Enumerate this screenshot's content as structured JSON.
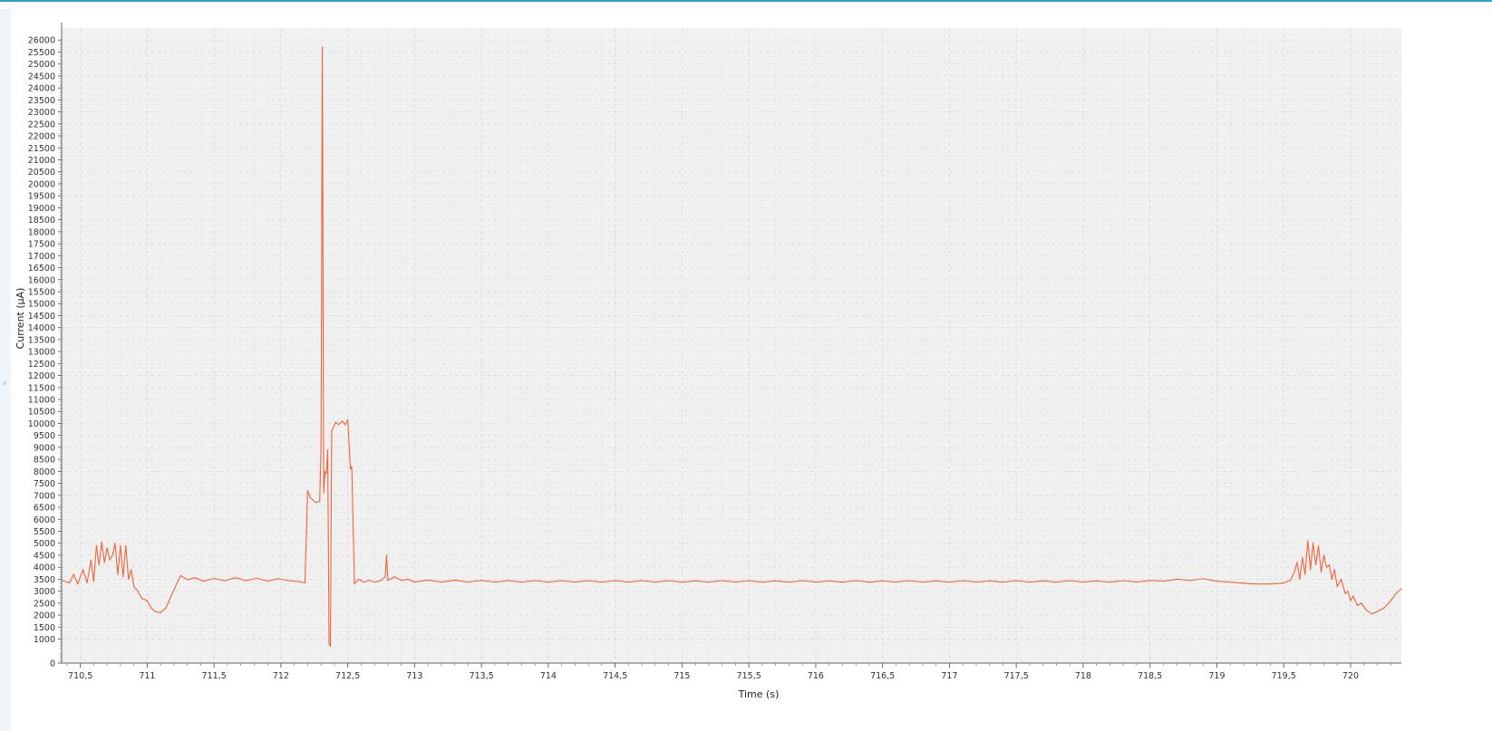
{
  "colors": {
    "accent_border": "#2aa7bd",
    "plot_background": "#f2f2f2",
    "grid": "#d9d9d9",
    "series": "#f0643c",
    "axis": "#666666"
  },
  "chart_data": {
    "type": "line",
    "xlabel": "Time (s)",
    "ylabel": "Current (µA)",
    "xlim": [
      710.36,
      720.38
    ],
    "ylim": [
      0,
      26500
    ],
    "grid": true,
    "x_ticks": [
      {
        "value": 710.5,
        "label": "710,5"
      },
      {
        "value": 711,
        "label": "711"
      },
      {
        "value": 711.5,
        "label": "711,5"
      },
      {
        "value": 712,
        "label": "712"
      },
      {
        "value": 712.5,
        "label": "712,5"
      },
      {
        "value": 713,
        "label": "713"
      },
      {
        "value": 713.5,
        "label": "713,5"
      },
      {
        "value": 714,
        "label": "714"
      },
      {
        "value": 714.5,
        "label": "714,5"
      },
      {
        "value": 715,
        "label": "715"
      },
      {
        "value": 715.5,
        "label": "715,5"
      },
      {
        "value": 716,
        "label": "716"
      },
      {
        "value": 716.5,
        "label": "716,5"
      },
      {
        "value": 717,
        "label": "717"
      },
      {
        "value": 717.5,
        "label": "717,5"
      },
      {
        "value": 718,
        "label": "718"
      },
      {
        "value": 718.5,
        "label": "718,5"
      },
      {
        "value": 719,
        "label": "719"
      },
      {
        "value": 719.5,
        "label": "719,5"
      },
      {
        "value": 720,
        "label": "720"
      }
    ],
    "y_ticks": [
      {
        "value": 0,
        "label": "0"
      },
      {
        "value": 1000,
        "label": "1000"
      },
      {
        "value": 1500,
        "label": "1500"
      },
      {
        "value": 2000,
        "label": "2000"
      },
      {
        "value": 2500,
        "label": "2500"
      },
      {
        "value": 3000,
        "label": "3000"
      },
      {
        "value": 3500,
        "label": "3500"
      },
      {
        "value": 4000,
        "label": "4000"
      },
      {
        "value": 4500,
        "label": "4500"
      },
      {
        "value": 5000,
        "label": "5000"
      },
      {
        "value": 5500,
        "label": "5500"
      },
      {
        "value": 6000,
        "label": "6000"
      },
      {
        "value": 6500,
        "label": "6500"
      },
      {
        "value": 7000,
        "label": "7000"
      },
      {
        "value": 7500,
        "label": "7500"
      },
      {
        "value": 8000,
        "label": "8000"
      },
      {
        "value": 8500,
        "label": "8500"
      },
      {
        "value": 9000,
        "label": "9000"
      },
      {
        "value": 9500,
        "label": "9500"
      },
      {
        "value": 10000,
        "label": "10000"
      },
      {
        "value": 10500,
        "label": "10500"
      },
      {
        "value": 11000,
        "label": "11000"
      },
      {
        "value": 11500,
        "label": "11500"
      },
      {
        "value": 12000,
        "label": "12000"
      },
      {
        "value": 12500,
        "label": "12500"
      },
      {
        "value": 13000,
        "label": "13000"
      },
      {
        "value": 13500,
        "label": "13500"
      },
      {
        "value": 14000,
        "label": "14000"
      },
      {
        "value": 14500,
        "label": "14500"
      },
      {
        "value": 15000,
        "label": "15000"
      },
      {
        "value": 15500,
        "label": "15500"
      },
      {
        "value": 16000,
        "label": "16000"
      },
      {
        "value": 16500,
        "label": "16500"
      },
      {
        "value": 17000,
        "label": "17000"
      },
      {
        "value": 17500,
        "label": "17500"
      },
      {
        "value": 18000,
        "label": "18000"
      },
      {
        "value": 18500,
        "label": "18500"
      },
      {
        "value": 19000,
        "label": "19000"
      },
      {
        "value": 19500,
        "label": "19500"
      },
      {
        "value": 20000,
        "label": "20000"
      },
      {
        "value": 20500,
        "label": "20500"
      },
      {
        "value": 21000,
        "label": "21000"
      },
      {
        "value": 21500,
        "label": "21500"
      },
      {
        "value": 22000,
        "label": "22000"
      },
      {
        "value": 22500,
        "label": "22500"
      },
      {
        "value": 23000,
        "label": "23000"
      },
      {
        "value": 23500,
        "label": "23500"
      },
      {
        "value": 24000,
        "label": "24000"
      },
      {
        "value": 24500,
        "label": "24500"
      },
      {
        "value": 25000,
        "label": "25000"
      },
      {
        "value": 25500,
        "label": "25500"
      },
      {
        "value": 26000,
        "label": "26000"
      }
    ],
    "series": [
      {
        "color": "#f0643c",
        "points": [
          [
            710.36,
            3450
          ],
          [
            710.42,
            3350
          ],
          [
            710.45,
            3700
          ],
          [
            710.48,
            3300
          ],
          [
            710.52,
            3900
          ],
          [
            710.55,
            3350
          ],
          [
            710.58,
            4300
          ],
          [
            710.6,
            3400
          ],
          [
            710.62,
            4900
          ],
          [
            710.64,
            4100
          ],
          [
            710.66,
            5050
          ],
          [
            710.68,
            4200
          ],
          [
            710.7,
            4800
          ],
          [
            710.72,
            4300
          ],
          [
            710.74,
            4500
          ],
          [
            710.76,
            5000
          ],
          [
            710.78,
            3700
          ],
          [
            710.8,
            4900
          ],
          [
            710.82,
            3600
          ],
          [
            710.84,
            4900
          ],
          [
            710.86,
            3500
          ],
          [
            710.88,
            3900
          ],
          [
            710.9,
            3200
          ],
          [
            710.93,
            3000
          ],
          [
            710.96,
            2700
          ],
          [
            711.0,
            2600
          ],
          [
            711.03,
            2300
          ],
          [
            711.06,
            2150
          ],
          [
            711.1,
            2100
          ],
          [
            711.14,
            2300
          ],
          [
            711.18,
            2800
          ],
          [
            711.22,
            3300
          ],
          [
            711.25,
            3650
          ],
          [
            711.3,
            3480
          ],
          [
            711.36,
            3560
          ],
          [
            711.42,
            3420
          ],
          [
            711.5,
            3530
          ],
          [
            711.58,
            3440
          ],
          [
            711.66,
            3560
          ],
          [
            711.74,
            3440
          ],
          [
            711.82,
            3540
          ],
          [
            711.9,
            3420
          ],
          [
            711.98,
            3520
          ],
          [
            712.06,
            3440
          ],
          [
            712.14,
            3400
          ],
          [
            712.18,
            3350
          ],
          [
            712.2,
            7200
          ],
          [
            712.22,
            6900
          ],
          [
            712.26,
            6700
          ],
          [
            712.29,
            6750
          ],
          [
            712.3,
            9000
          ],
          [
            712.31,
            25700
          ],
          [
            712.32,
            7100
          ],
          [
            712.33,
            8000
          ],
          [
            712.34,
            7900
          ],
          [
            712.35,
            8900
          ],
          [
            712.36,
            800
          ],
          [
            712.37,
            700
          ],
          [
            712.38,
            9700
          ],
          [
            712.41,
            10050
          ],
          [
            712.43,
            9950
          ],
          [
            712.46,
            10100
          ],
          [
            712.48,
            9950
          ],
          [
            712.5,
            10150
          ],
          [
            712.52,
            8100
          ],
          [
            712.53,
            8200
          ],
          [
            712.55,
            3300
          ],
          [
            712.58,
            3500
          ],
          [
            712.62,
            3380
          ],
          [
            712.66,
            3450
          ],
          [
            712.7,
            3380
          ],
          [
            712.75,
            3450
          ],
          [
            712.78,
            3600
          ],
          [
            712.79,
            4500
          ],
          [
            712.8,
            3450
          ],
          [
            712.85,
            3600
          ],
          [
            712.9,
            3450
          ],
          [
            712.95,
            3500
          ],
          [
            713.0,
            3380
          ],
          [
            713.1,
            3460
          ],
          [
            713.2,
            3380
          ],
          [
            713.3,
            3460
          ],
          [
            713.4,
            3380
          ],
          [
            713.5,
            3450
          ],
          [
            713.6,
            3380
          ],
          [
            713.7,
            3440
          ],
          [
            713.8,
            3380
          ],
          [
            713.9,
            3440
          ],
          [
            714.0,
            3380
          ],
          [
            714.1,
            3440
          ],
          [
            714.2,
            3380
          ],
          [
            714.3,
            3440
          ],
          [
            714.4,
            3380
          ],
          [
            714.5,
            3440
          ],
          [
            714.6,
            3380
          ],
          [
            714.7,
            3440
          ],
          [
            714.8,
            3380
          ],
          [
            714.9,
            3440
          ],
          [
            715.0,
            3380
          ],
          [
            715.1,
            3430
          ],
          [
            715.2,
            3380
          ],
          [
            715.3,
            3440
          ],
          [
            715.4,
            3380
          ],
          [
            715.5,
            3440
          ],
          [
            715.6,
            3380
          ],
          [
            715.7,
            3430
          ],
          [
            715.8,
            3380
          ],
          [
            715.9,
            3440
          ],
          [
            716.0,
            3380
          ],
          [
            716.1,
            3430
          ],
          [
            716.2,
            3380
          ],
          [
            716.3,
            3440
          ],
          [
            716.4,
            3380
          ],
          [
            716.5,
            3430
          ],
          [
            716.6,
            3380
          ],
          [
            716.7,
            3440
          ],
          [
            716.8,
            3380
          ],
          [
            716.9,
            3430
          ],
          [
            717.0,
            3380
          ],
          [
            717.1,
            3440
          ],
          [
            717.2,
            3380
          ],
          [
            717.3,
            3430
          ],
          [
            717.4,
            3380
          ],
          [
            717.5,
            3440
          ],
          [
            717.6,
            3380
          ],
          [
            717.7,
            3430
          ],
          [
            717.8,
            3380
          ],
          [
            717.9,
            3440
          ],
          [
            718.0,
            3380
          ],
          [
            718.1,
            3430
          ],
          [
            718.2,
            3380
          ],
          [
            718.3,
            3440
          ],
          [
            718.4,
            3380
          ],
          [
            718.5,
            3450
          ],
          [
            718.6,
            3420
          ],
          [
            718.7,
            3500
          ],
          [
            718.8,
            3450
          ],
          [
            718.9,
            3520
          ],
          [
            719.0,
            3420
          ],
          [
            719.1,
            3380
          ],
          [
            719.2,
            3330
          ],
          [
            719.3,
            3300
          ],
          [
            719.4,
            3300
          ],
          [
            719.5,
            3340
          ],
          [
            719.55,
            3450
          ],
          [
            719.58,
            3800
          ],
          [
            719.6,
            4200
          ],
          [
            719.62,
            3500
          ],
          [
            719.64,
            4400
          ],
          [
            719.66,
            3700
          ],
          [
            719.68,
            5100
          ],
          [
            719.7,
            3900
          ],
          [
            719.72,
            5000
          ],
          [
            719.74,
            4100
          ],
          [
            719.76,
            4900
          ],
          [
            719.78,
            3800
          ],
          [
            719.8,
            4500
          ],
          [
            719.82,
            4000
          ],
          [
            719.84,
            4100
          ],
          [
            719.86,
            3500
          ],
          [
            719.88,
            3900
          ],
          [
            719.9,
            3200
          ],
          [
            719.93,
            3500
          ],
          [
            719.96,
            2900
          ],
          [
            719.98,
            3000
          ],
          [
            720.0,
            2600
          ],
          [
            720.02,
            2800
          ],
          [
            720.05,
            2400
          ],
          [
            720.08,
            2500
          ],
          [
            720.12,
            2200
          ],
          [
            720.16,
            2050
          ],
          [
            720.2,
            2150
          ],
          [
            720.25,
            2300
          ],
          [
            720.3,
            2600
          ],
          [
            720.34,
            2900
          ],
          [
            720.38,
            3100
          ]
        ]
      }
    ]
  }
}
